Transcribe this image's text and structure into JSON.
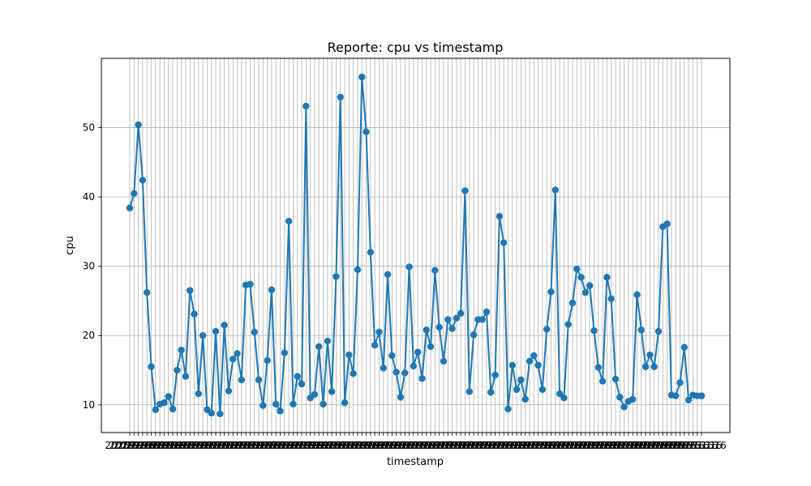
{
  "chart_data": {
    "type": "line",
    "title": "Reporte: cpu vs timestamp",
    "xlabel": "timestamp",
    "ylabel": "cpu",
    "ylim": [
      6.0,
      60.0
    ],
    "yticks": [
      10,
      20,
      30,
      40,
      50
    ],
    "grid": true,
    "marker": "circle",
    "line_color": "#1f77b4",
    "grid_color": "#b0b0b0",
    "x_tick_label_sample": "2025-...16",
    "series": [
      {
        "values": [
          38.4,
          40.5,
          50.4,
          42.4,
          26.2,
          15.5,
          9.3,
          10.1,
          10.3,
          11.2,
          9.4,
          15.0,
          17.9,
          14.1,
          26.5,
          23.1,
          11.6,
          20.0,
          9.3,
          8.8,
          20.6,
          8.7,
          21.5,
          12.0,
          16.6,
          17.4,
          13.6,
          27.3,
          27.4,
          20.5,
          13.6,
          9.9,
          16.4,
          26.6,
          10.1,
          9.1,
          17.5,
          36.5,
          10.1,
          14.1,
          13.0,
          53.1,
          11.0,
          11.5,
          18.4,
          10.1,
          19.2,
          11.9,
          28.5,
          54.4,
          10.3,
          17.2,
          14.5,
          29.5,
          57.3,
          49.4,
          32.0,
          18.6,
          20.5,
          15.3,
          28.8,
          17.1,
          14.7,
          11.1,
          14.6,
          29.9,
          15.6,
          17.6,
          13.8,
          20.8,
          18.4,
          29.4,
          21.2,
          16.3,
          22.3,
          21.0,
          22.5,
          23.2,
          40.9,
          11.9,
          20.1,
          22.3,
          22.3,
          23.4,
          11.8,
          14.3,
          37.2,
          33.4,
          9.4,
          15.7,
          12.2,
          13.6,
          10.8,
          16.3,
          17.1,
          15.7,
          12.2,
          20.9,
          26.3,
          41.0,
          11.6,
          11.0,
          21.6,
          24.7,
          29.6,
          28.4,
          26.2,
          27.2,
          20.7,
          15.4,
          13.4,
          28.4,
          25.3,
          13.7,
          11.1,
          9.7,
          10.5,
          10.8,
          25.9,
          20.8,
          15.5,
          17.2,
          15.5,
          20.6,
          35.7,
          36.1,
          11.4,
          11.3,
          13.2,
          18.3,
          10.7,
          11.4,
          11.3,
          11.3
        ]
      }
    ]
  }
}
